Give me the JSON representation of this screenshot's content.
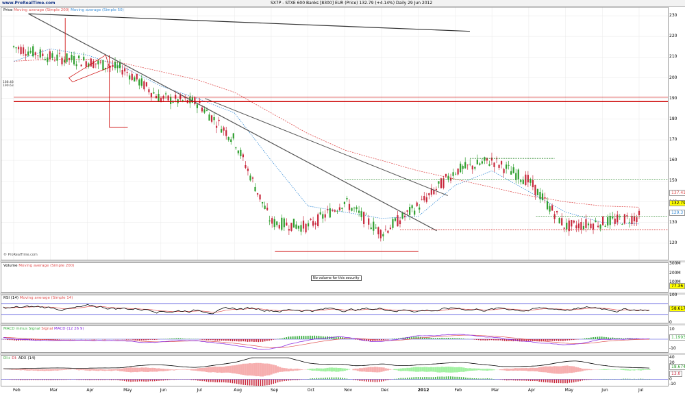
{
  "header": {
    "logo": "www.ProRealTime.com",
    "title": "SX7P - STXE 600 Banks [8300] EUR (Price)   132.79 (+4.14%)   Daily  29 Jun 2012"
  },
  "price_pane": {
    "legend_price": "Price",
    "legend_ma200": "Moving average (Simple 200)",
    "legend_ma50": "Moving average (Simple 50)",
    "watermark": "© ProRealTime.com",
    "level_tags": [
      "188.48",
      "190.63"
    ],
    "last_tag": "132.79",
    "ma200_tag": "137.41",
    "ma50_tag": "129.3"
  },
  "volume_pane": {
    "legend_volume": "Volume",
    "legend_ma": "Moving average (Simple 200)",
    "note": "No volume for this security",
    "last_tag": "77.36"
  },
  "rsi_pane": {
    "legend_rsi": "RSI (14)",
    "legend_ma": "Moving average (Simple 14)",
    "last_tag": "58.617"
  },
  "macd_pane": {
    "legend_a": "MACD minus Signal",
    "legend_b": "Signal",
    "legend_c": "MACD (12 26 9)",
    "last_tag": "1.1993"
  },
  "adx_pane": {
    "legend_a": "DI+",
    "legend_b": "DI-",
    "legend_c": "ADX (14)",
    "tag_di": "18.674",
    "tag_adx": "13.0"
  },
  "colors": {
    "bull": "#2e9e2e",
    "bear": "#c8283c",
    "ma200": "#e05050",
    "ma50": "#3a8fd8",
    "trendline": "#555555",
    "support": "#cc0000",
    "green_dash": "#2e8b2e",
    "rsi": "#000000",
    "rsi_ma": "#e05050",
    "macd": "#8a2be2",
    "signal": "#e05050",
    "hist_pos": "#3cb043",
    "hist_neg": "#c8283c",
    "di_plus_fill": "#90ee90",
    "di_minus_fill": "#f4a0a0",
    "adx": "#000000"
  },
  "chart_data": [
    {
      "type": "line",
      "title": "SX7P - STXE 600 Banks [8300] EUR (Price)",
      "series": [
        {
          "name": "Price",
          "x": [
            "Feb",
            "Mar",
            "Apr",
            "May",
            "Jun",
            "Jul",
            "Aug",
            "Sep",
            "Oct",
            "Nov",
            "Dec",
            "2012",
            "Feb",
            "Mar",
            "Apr",
            "May",
            "Jun",
            "Jul"
          ],
          "values": [
            215,
            210,
            208,
            204,
            190,
            188,
            170,
            130,
            128,
            140,
            125,
            138,
            155,
            160,
            150,
            128,
            130,
            132.79
          ]
        },
        {
          "name": "Moving average (Simple 200)",
          "x": [
            "Feb",
            "Mar",
            "Apr",
            "May",
            "Jun",
            "Jul",
            "Aug",
            "Sep",
            "Oct",
            "Nov",
            "Dec",
            "2012",
            "Feb",
            "Mar",
            "Apr",
            "May",
            "Jun",
            "Jul"
          ],
          "values": [
            208,
            209,
            209,
            207,
            203,
            199,
            193,
            183,
            173,
            165,
            160,
            155,
            151,
            147,
            143,
            140,
            138,
            137.41
          ]
        },
        {
          "name": "Moving average (Simple 50)",
          "x": [
            "Feb",
            "Mar",
            "Apr",
            "May",
            "Jun",
            "Jul",
            "Aug",
            "Sep",
            "Oct",
            "Nov",
            "Dec",
            "2012",
            "Feb",
            "Mar",
            "Apr",
            "May",
            "Jun",
            "Jul"
          ],
          "values": [
            208,
            214,
            211,
            205,
            196,
            190,
            183,
            160,
            138,
            135,
            132,
            133,
            148,
            155,
            145,
            135,
            130,
            129.3
          ]
        }
      ],
      "x_ticks": [
        "Feb",
        "Mar",
        "Apr",
        "May",
        "Jun",
        "Jul",
        "Aug",
        "Sep",
        "Oct",
        "Nov",
        "Dec",
        "2012",
        "Feb",
        "Mar",
        "Apr",
        "May",
        "Jun",
        "Jul"
      ],
      "y_ticks": [
        120,
        130,
        140,
        150,
        160,
        170,
        180,
        190,
        200,
        210,
        220,
        230
      ],
      "ylim": [
        112,
        234
      ],
      "last_value": 132.79
    },
    {
      "type": "bar",
      "title": "Volume",
      "y_ticks": [
        "300M",
        "200M",
        "100M"
      ],
      "ylim": [
        0,
        300
      ]
    },
    {
      "type": "line",
      "title": "RSI (14)",
      "y_ticks": [
        100,
        50,
        0
      ],
      "ylim": [
        0,
        100
      ],
      "last_value": 58.617
    },
    {
      "type": "line",
      "title": "MACD (12 26 9)",
      "y_ticks": [
        10,
        0,
        -10
      ],
      "ylim": [
        -14,
        14
      ],
      "last_value": 1.1993
    },
    {
      "type": "area",
      "title": "ADX (14)",
      "y_ticks": [
        40,
        30,
        20,
        10,
        0,
        -10
      ],
      "ylim": [
        -12,
        44
      ],
      "last_value": 18.674
    }
  ]
}
